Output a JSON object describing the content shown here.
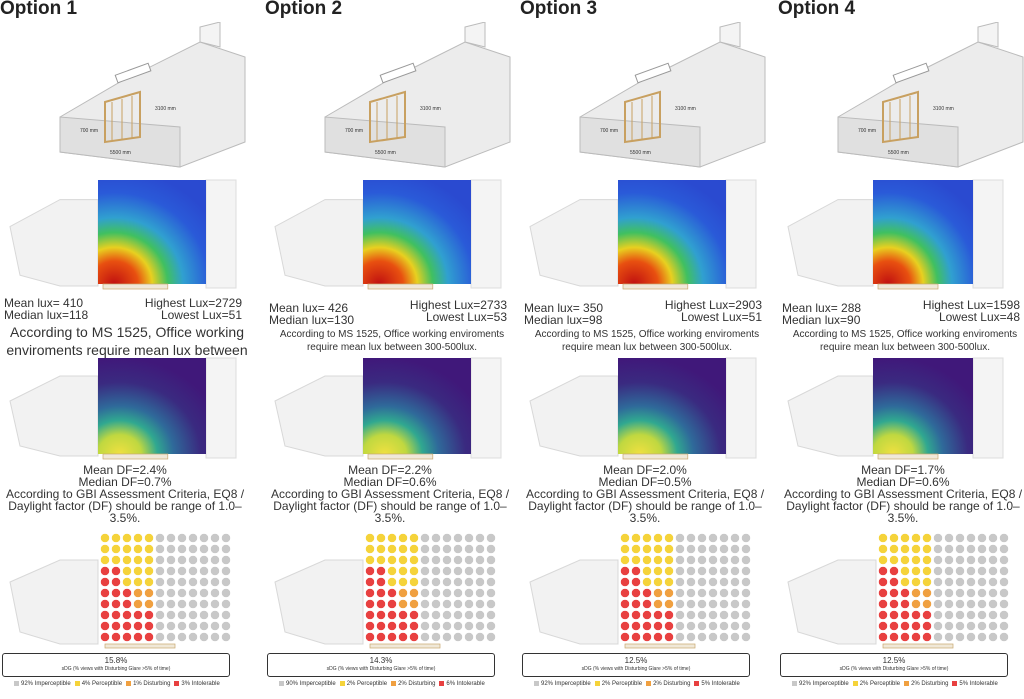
{
  "colors": {
    "imperceptible": "#c8c8c8",
    "perceptible": "#f5d33a",
    "disturbing": "#f0a040",
    "intolerable": "#e84040"
  },
  "model_labels": {
    "height": "3100 mm",
    "width": "5500 mm",
    "depth": "700 mm"
  },
  "sdg_label": "sDG (% views with Disturbing Glare >5% of time)",
  "options": [
    {
      "title": "Option 1",
      "mean_lux": "Mean lux= 410",
      "median_lux": "Median lux=118",
      "highest_lux": "Highest Lux=2729",
      "lowest_lux": "Lowest Lux=51",
      "lux_note": "According to MS 1525, Office working enviroments require mean lux between",
      "mean_df": "Mean DF=2.4%",
      "median_df": "Median DF=0.7%",
      "df_note": "According to GBI Assessment Criteria, EQ8 / Daylight factor (DF) should be range of 1.0–3.5%.",
      "sdg": "15.8%",
      "legend": [
        "92% Imperceptible",
        "4% Perceptible",
        "1% Disturbing",
        "3% Intolerable"
      ]
    },
    {
      "title": "Option 2",
      "mean_lux": "Mean lux= 426",
      "median_lux": "Median lux=130",
      "highest_lux": "Highest Lux=2733",
      "lowest_lux": "Lowest Lux=53",
      "lux_note": "According to MS 1525, Office working enviroments require mean lux between 300-500lux.",
      "mean_df": "Mean DF=2.2%",
      "median_df": "Median DF=0.6%",
      "df_note": "According to GBI Assessment Criteria, EQ8 / Daylight factor (DF) should be range of 1.0–3.5%.",
      "sdg": "14.3%",
      "legend": [
        "90% Imperceptible",
        "2% Perceptible",
        "2% Disturbing",
        "6% Intolerable"
      ]
    },
    {
      "title": "Option 3",
      "mean_lux": "Mean lux= 350",
      "median_lux": "Median lux=98",
      "highest_lux": "Highest Lux=2903",
      "lowest_lux": "Lowest Lux=51",
      "lux_note": "According to MS 1525, Office working enviroments require mean lux between 300-500lux.",
      "mean_df": "Mean DF=2.0%",
      "median_df": "Median DF=0.5%",
      "df_note": "According to GBI Assessment Criteria, EQ8 / Daylight factor (DF) should be range of 1.0–3.5%.",
      "sdg": "12.5%",
      "legend": [
        "92% Imperceptible",
        "2% Perceptible",
        "2% Disturbing",
        "5% Intolerable"
      ]
    },
    {
      "title": "Option 4",
      "mean_lux": "Mean lux= 288",
      "median_lux": "Median lux=90",
      "highest_lux": "Highest Lux=1598",
      "lowest_lux": "Lowest Lux=48",
      "lux_note": "According to MS 1525, Office working enviroments require mean lux between 300-500lux.",
      "mean_df": "Mean DF=1.7%",
      "median_df": "Median DF=0.6%",
      "df_note": "According to GBI Assessment Criteria, EQ8 / Daylight factor (DF) should be range of 1.0–3.5%.",
      "sdg": "12.5%",
      "legend": [
        "92% Imperceptible",
        "2% Perceptible",
        "2% Disturbing",
        "5% Intolerable"
      ]
    }
  ]
}
